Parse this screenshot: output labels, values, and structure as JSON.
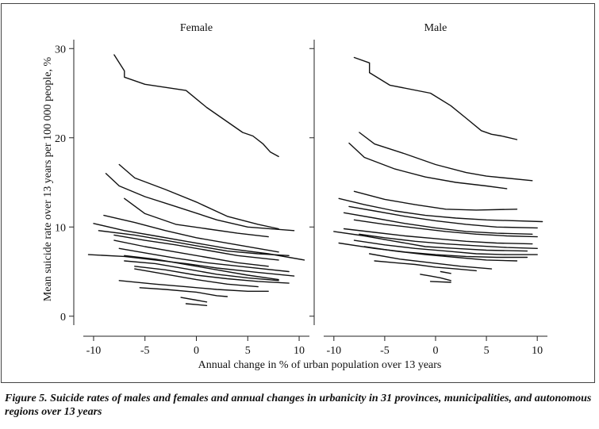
{
  "chart_data": {
    "type": "line",
    "figure_caption": "Figure 5. Suicide rates of males and females and annual changes in urbanicity in 31 provinces, municipalities, and autonomous regions over 13 years",
    "xlabel": "Annual change in % of urban population over 13 years",
    "ylabel": "Mean suicide rate over 13 years per 100 000 people, %",
    "xlim": [
      -11,
      11
    ],
    "ylim": [
      -1,
      31
    ],
    "xticks": [
      -10,
      -5,
      0,
      5,
      10
    ],
    "xtick_labels": [
      "-10",
      "-5",
      "0",
      "5",
      "10"
    ],
    "yticks": [
      0,
      10,
      20,
      30
    ],
    "ytick_labels": [
      "0",
      "10",
      "20",
      "30"
    ],
    "panels": [
      {
        "title": "Female",
        "series": [
          {
            "x": [
              -8,
              -7,
              -7,
              -5,
              -1,
              1,
              3,
              4.5,
              5.5,
              6.5,
              7.2,
              8
            ],
            "y": [
              29.3,
              27.5,
              26.8,
              26,
              25.3,
              23.4,
              21.8,
              20.6,
              20.2,
              19.3,
              18.4,
              17.9
            ]
          },
          {
            "x": [
              -7.5,
              -6,
              -3,
              0,
              3,
              6,
              8
            ],
            "y": [
              17,
              15.5,
              14.2,
              12.8,
              11.2,
              10.3,
              9.8
            ]
          },
          {
            "x": [
              -8.8,
              -7.5,
              -5,
              -2,
              2,
              5,
              9.5
            ],
            "y": [
              16,
              14.6,
              13.4,
              12.3,
              10.8,
              10,
              9.6
            ]
          },
          {
            "x": [
              -7,
              -5,
              -2,
              1,
              4,
              7
            ],
            "y": [
              13.2,
              11.5,
              10.3,
              9.8,
              9.3,
              8.9
            ]
          },
          {
            "x": [
              -9,
              -6,
              -3,
              0,
              4,
              8
            ],
            "y": [
              11.3,
              10.5,
              9.6,
              8.8,
              8,
              7.2
            ]
          },
          {
            "x": [
              -10,
              -7,
              -4,
              -1,
              3,
              7,
              10.5
            ],
            "y": [
              10.4,
              9.6,
              9,
              8.4,
              7.6,
              7,
              6.3
            ]
          },
          {
            "x": [
              -9.5,
              -6,
              -3,
              0,
              3,
              6,
              9
            ],
            "y": [
              9.6,
              9.1,
              8.5,
              7.9,
              7.3,
              7,
              6.8
            ]
          },
          {
            "x": [
              -8,
              -5,
              -2,
              1,
              4,
              8
            ],
            "y": [
              9.1,
              8.5,
              8,
              7.4,
              6.8,
              6.3
            ]
          },
          {
            "x": [
              -8,
              -5,
              -2,
              1,
              4,
              7
            ],
            "y": [
              8.5,
              7.8,
              7.2,
              6.6,
              6,
              5.6
            ]
          },
          {
            "x": [
              -7.5,
              -5,
              -2,
              1,
              5,
              9
            ],
            "y": [
              7.6,
              7.1,
              6.5,
              6,
              5.5,
              5
            ]
          },
          {
            "x": [
              -10.5,
              -7,
              -4,
              -1,
              2,
              6,
              9.5
            ],
            "y": [
              6.9,
              6.7,
              6.3,
              5.9,
              5.4,
              4.9,
              4.5
            ]
          },
          {
            "x": [
              -7,
              -4,
              -1,
              2,
              5,
              8
            ],
            "y": [
              6.8,
              6.4,
              5.8,
              5.2,
              4.6,
              4.1
            ]
          },
          {
            "x": [
              -7,
              -4,
              -1,
              2,
              5,
              8
            ],
            "y": [
              6.2,
              5.9,
              5.3,
              4.7,
              4.3,
              4
            ]
          },
          {
            "x": [
              -6,
              -3,
              0,
              3,
              6,
              9
            ],
            "y": [
              5.6,
              5.2,
              4.6,
              4.2,
              3.9,
              3.7
            ]
          },
          {
            "x": [
              -6,
              -4,
              -2,
              0,
              3,
              6
            ],
            "y": [
              5.3,
              4.9,
              4.5,
              4.1,
              3.6,
              3.3
            ]
          },
          {
            "x": [
              -7.5,
              -4,
              -1,
              2,
              5,
              7
            ],
            "y": [
              4,
              3.6,
              3.3,
              3,
              2.8,
              2.8
            ]
          },
          {
            "x": [
              -5.5,
              -3,
              0,
              2,
              3
            ],
            "y": [
              3.2,
              3,
              2.7,
              2.3,
              2.2
            ]
          },
          {
            "x": [
              -1.5,
              0,
              1
            ],
            "y": [
              2.1,
              1.8,
              1.6
            ]
          },
          {
            "x": [
              -1,
              0,
              1
            ],
            "y": [
              1.4,
              1.3,
              1.2
            ]
          }
        ]
      },
      {
        "title": "Male",
        "series": [
          {
            "x": [
              -8,
              -6.5,
              -6.5,
              -4.5,
              -0.5,
              1.5,
              3,
              4.5,
              5.5,
              6.5,
              8
            ],
            "y": [
              29,
              28.4,
              27.3,
              25.9,
              25,
              23.6,
              22.2,
              20.8,
              20.4,
              20.2,
              19.8
            ]
          },
          {
            "x": [
              -7.5,
              -6,
              -3,
              0,
              3,
              5,
              9.5
            ],
            "y": [
              20.6,
              19.3,
              18.2,
              17,
              16.1,
              15.7,
              15.2
            ]
          },
          {
            "x": [
              -8.5,
              -7,
              -4,
              -1,
              2,
              5,
              7
            ],
            "y": [
              19.4,
              17.8,
              16.5,
              15.6,
              15,
              14.6,
              14.3
            ]
          },
          {
            "x": [
              -8,
              -5,
              -2,
              1,
              4,
              8
            ],
            "y": [
              14,
              13.1,
              12.5,
              12,
              11.9,
              12
            ]
          },
          {
            "x": [
              -9.5,
              -7,
              -4,
              -1,
              2,
              5,
              10.5
            ],
            "y": [
              13.2,
              12.5,
              11.8,
              11.3,
              11,
              10.8,
              10.6
            ]
          },
          {
            "x": [
              -8.5,
              -6,
              -3,
              0,
              3,
              6,
              10
            ],
            "y": [
              12.3,
              11.8,
              11.2,
              10.7,
              10.3,
              10,
              9.9
            ]
          },
          {
            "x": [
              -9,
              -6,
              -3,
              0,
              3,
              6,
              9.5
            ],
            "y": [
              11.6,
              11,
              10.4,
              9.9,
              9.5,
              9.3,
              9.2
            ]
          },
          {
            "x": [
              -8,
              -5,
              -2,
              1,
              4,
              7,
              10
            ],
            "y": [
              10.8,
              10.3,
              9.9,
              9.5,
              9.2,
              9,
              8.9
            ]
          },
          {
            "x": [
              -9,
              -6,
              -3,
              0,
              3,
              6,
              9.5
            ],
            "y": [
              9.8,
              9.4,
              9,
              8.7,
              8.4,
              8.2,
              8.1
            ]
          },
          {
            "x": [
              -7.5,
              -5,
              -2,
              1,
              4,
              7,
              10
            ],
            "y": [
              9.2,
              8.8,
              8.4,
              8.1,
              7.9,
              7.7,
              7.6
            ]
          },
          {
            "x": [
              -10,
              -7,
              -4,
              -1,
              2,
              5,
              9
            ],
            "y": [
              9.5,
              9,
              8.4,
              7.8,
              7.6,
              7.4,
              7.3
            ]
          },
          {
            "x": [
              -8,
              -5,
              -2,
              1,
              4,
              7,
              10
            ],
            "y": [
              8.5,
              8,
              7.6,
              7.3,
              7,
              6.9,
              6.9
            ]
          },
          {
            "x": [
              -9.5,
              -6,
              -3,
              0,
              3,
              6,
              9
            ],
            "y": [
              8.2,
              7.6,
              7.2,
              6.9,
              6.7,
              6.6,
              6.6
            ]
          },
          {
            "x": [
              -7,
              -4,
              -1,
              2,
              5,
              8
            ],
            "y": [
              7.8,
              7.3,
              6.9,
              6.6,
              6.3,
              6.2
            ]
          },
          {
            "x": [
              -6.5,
              -3.5,
              -0.5,
              2.5,
              5.5
            ],
            "y": [
              7,
              6.4,
              6,
              5.6,
              5.3
            ]
          },
          {
            "x": [
              -6,
              -4,
              -2,
              0,
              2,
              4
            ],
            "y": [
              6.2,
              6,
              5.8,
              5.5,
              5.3,
              5.1
            ]
          },
          {
            "x": [
              -1.5,
              -0.5,
              0.5,
              1.5
            ],
            "y": [
              4.7,
              4.5,
              4.3,
              4
            ]
          },
          {
            "x": [
              0.5,
              1.5
            ],
            "y": [
              5,
              4.8
            ]
          },
          {
            "x": [
              -0.5,
              1.5
            ],
            "y": [
              3.9,
              3.8
            ]
          }
        ]
      }
    ]
  }
}
